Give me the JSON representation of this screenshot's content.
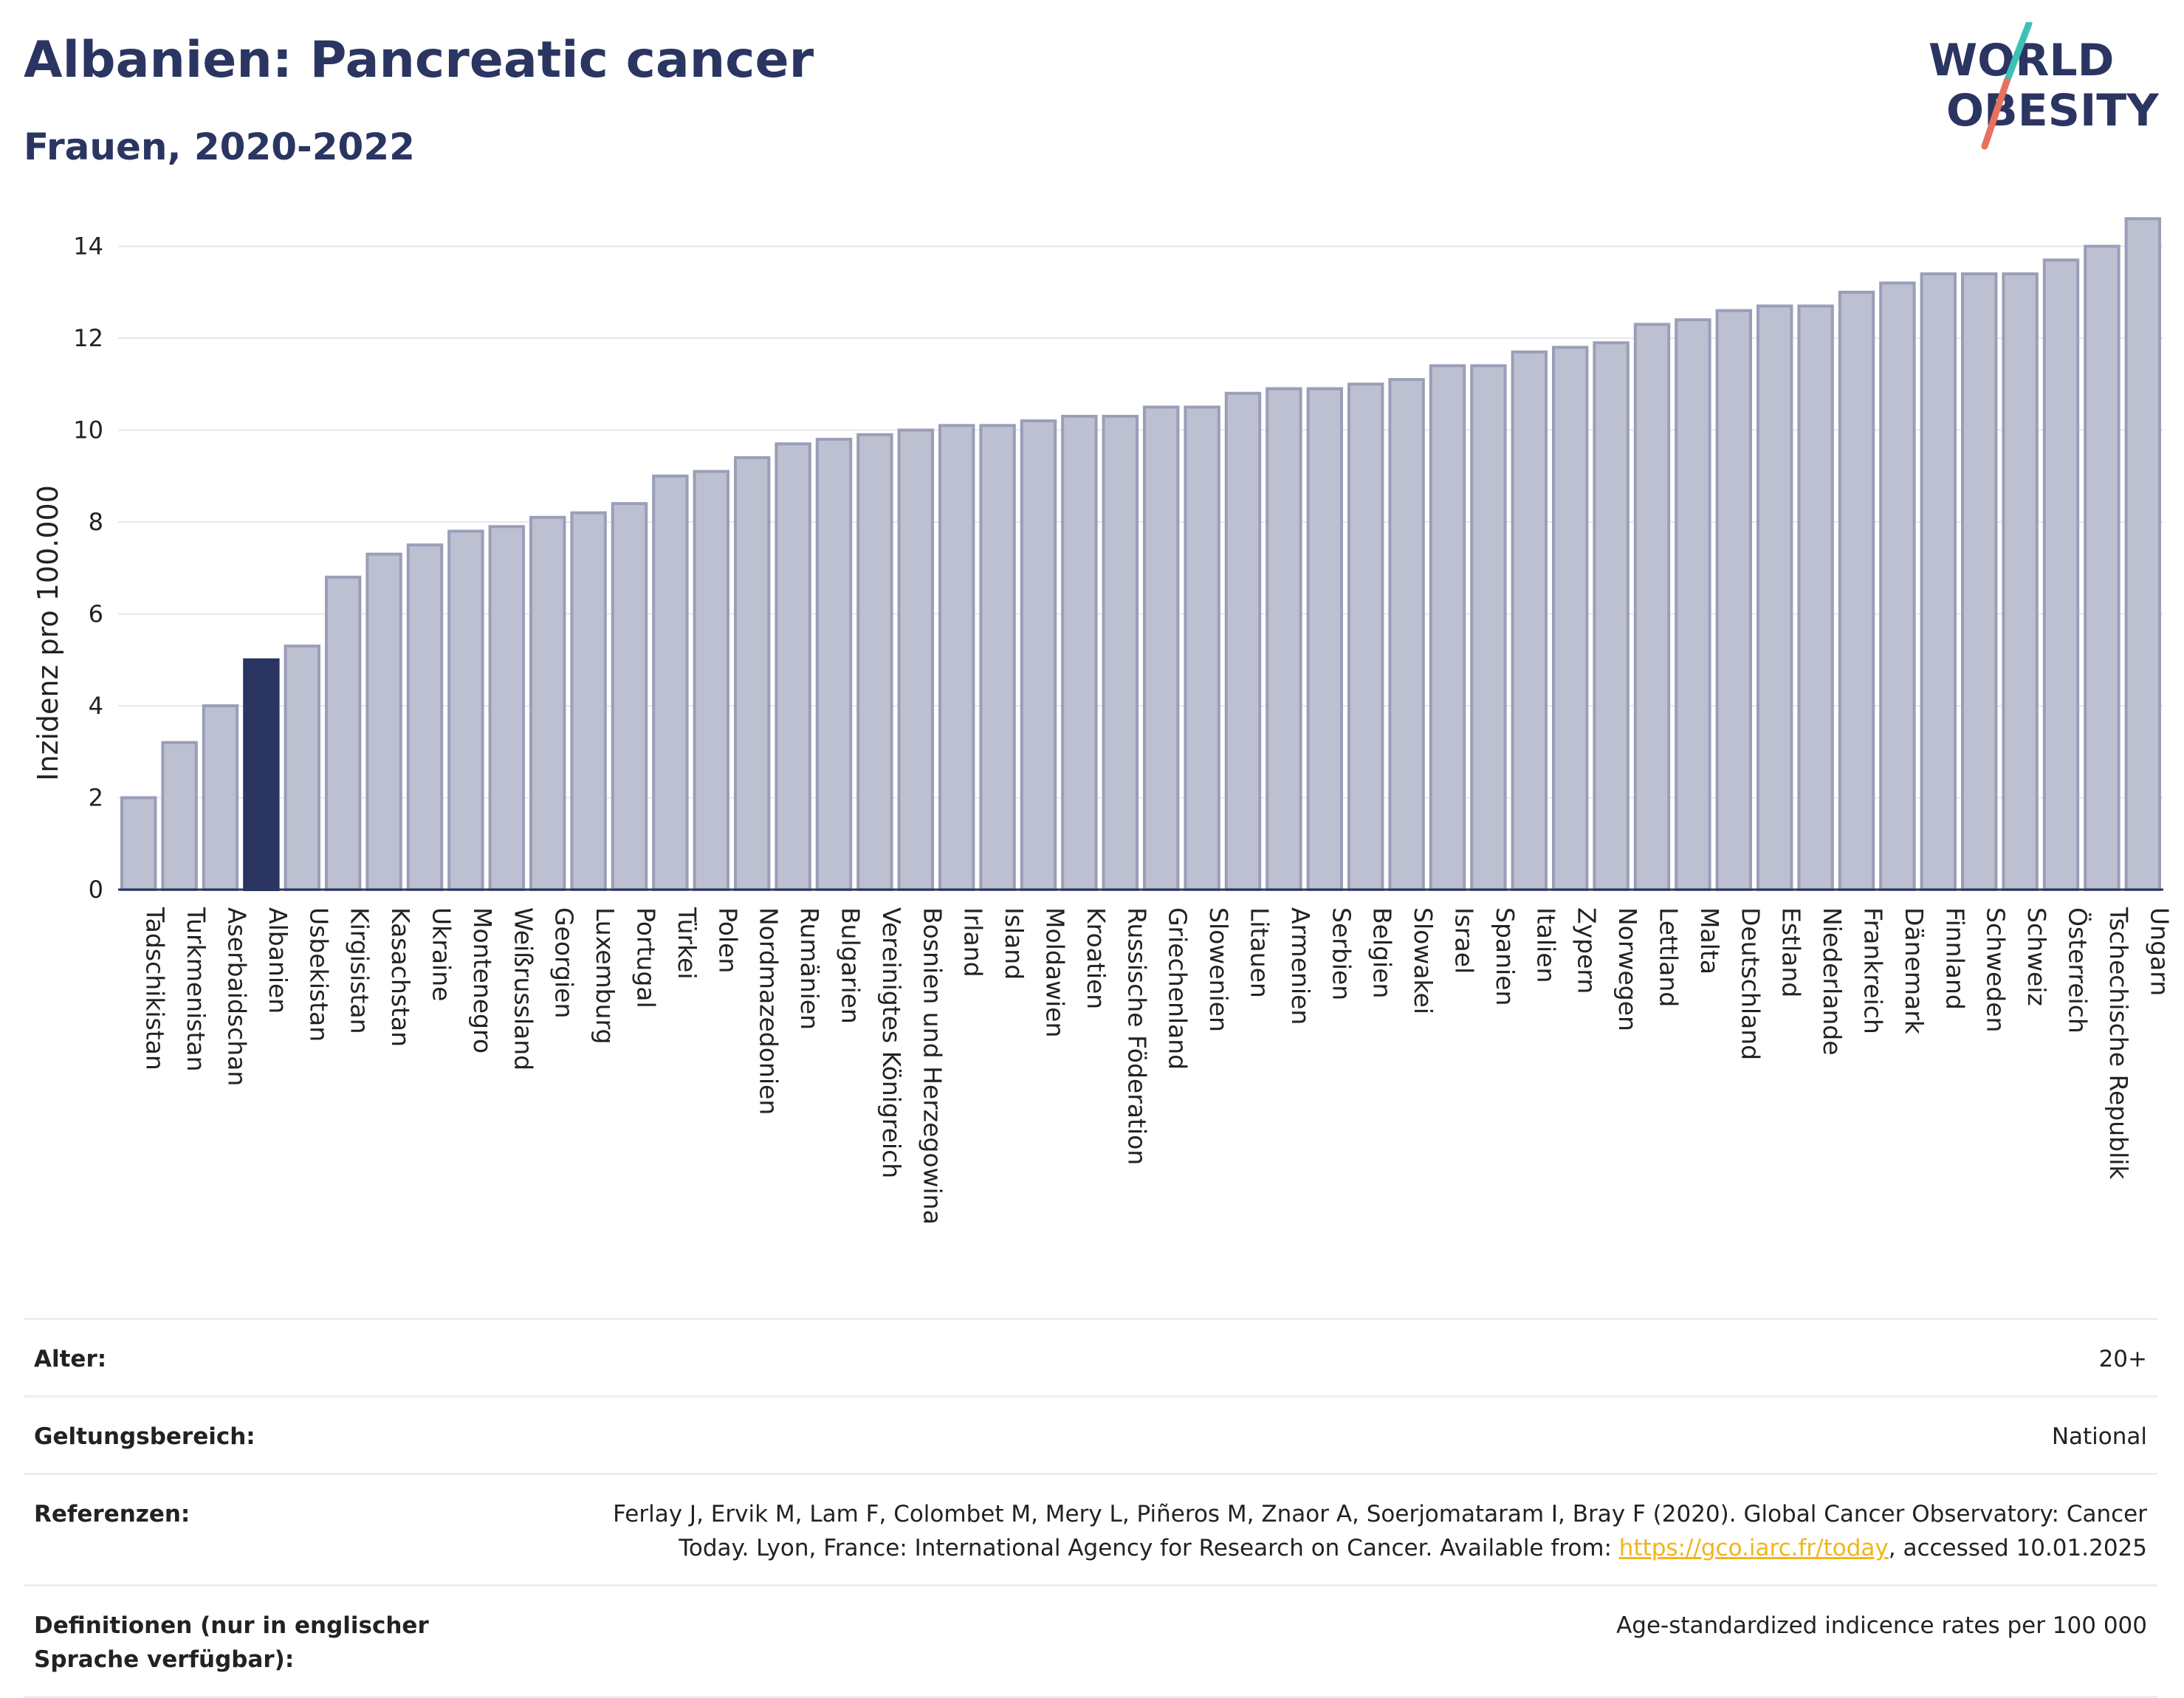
{
  "header": {
    "title": "Albanien: Pancreatic cancer",
    "subtitle": "Frauen, 2020-2022"
  },
  "logo": {
    "line1": "WORLD",
    "line2": "OBESITY"
  },
  "colors": {
    "highlight_bar": "#2b3561",
    "bar": "#bdc0d0",
    "bar_border": "#9a9eb8",
    "text_dark": "#2b3561",
    "grid": "#e6e8ee",
    "link": "#f2b518",
    "logo_teal": "#3cc1b7",
    "logo_red": "#e8705f"
  },
  "chart_data": {
    "type": "bar",
    "ylabel": "Inzidenz pro 100.000",
    "xlabel": "",
    "ylim": [
      0,
      14.7
    ],
    "yticks": [
      0,
      2,
      4,
      6,
      8,
      10,
      12,
      14
    ],
    "grid": true,
    "highlight": "Albanien",
    "categories": [
      "Tadschikistan",
      "Turkmenistan",
      "Aserbaidschan",
      "Albanien",
      "Usbekistan",
      "Kirgisistan",
      "Kasachstan",
      "Ukraine",
      "Montenegro",
      "Weißrussland",
      "Georgien",
      "Luxemburg",
      "Portugal",
      "Türkei",
      "Polen",
      "Nordmazedonien",
      "Rumänien",
      "Bulgarien",
      "Vereinigtes Königreich",
      "Bosnien und Herzegowina",
      "Irland",
      "Island",
      "Moldawien",
      "Kroatien",
      "Russische Föderation",
      "Griechenland",
      "Slowenien",
      "Litauen",
      "Armenien",
      "Serbien",
      "Belgien",
      "Slowakei",
      "Israel",
      "Spanien",
      "Italien",
      "Zypern",
      "Norwegen",
      "Lettland",
      "Malta",
      "Deutschland",
      "Estland",
      "Niederlande",
      "Frankreich",
      "Dänemark",
      "Finnland",
      "Schweden",
      "Schweiz",
      "Österreich",
      "Tschechische Republik",
      "Ungarn"
    ],
    "values": [
      2.0,
      3.2,
      4.0,
      5.0,
      5.3,
      6.8,
      7.3,
      7.5,
      7.8,
      7.9,
      8.1,
      8.2,
      8.4,
      9.0,
      9.1,
      9.4,
      9.7,
      9.8,
      9.9,
      10.0,
      10.1,
      10.1,
      10.2,
      10.3,
      10.3,
      10.5,
      10.5,
      10.8,
      10.9,
      10.9,
      11.0,
      11.1,
      11.4,
      11.4,
      11.7,
      11.8,
      11.9,
      12.3,
      12.4,
      12.6,
      12.7,
      12.7,
      13.0,
      13.2,
      13.4,
      13.4,
      13.4,
      13.7,
      14.0,
      14.6
    ]
  },
  "meta": {
    "rows": [
      {
        "key": "Alter:",
        "value": "20+"
      },
      {
        "key": "Geltungsbereich:",
        "value": "National"
      }
    ],
    "references": {
      "key": "Referenzen:",
      "line1": "Ferlay J, Ervik M, Lam F, Colombet M, Mery L, Piñeros M, Znaor A, Soerjomataram I, Bray F (2020). Global Cancer Observatory: Cancer",
      "line2_before": "Today. Lyon, France: International Agency for Research on Cancer. Available from:",
      "link": "https://gco.iarc.fr/today",
      "line2_after": ", accessed 10.01.2025"
    },
    "definitions": {
      "key": "Definitionen (nur in englischer Sprache verfügbar):",
      "value": "Age-standardized indicence rates per 100 000"
    }
  }
}
